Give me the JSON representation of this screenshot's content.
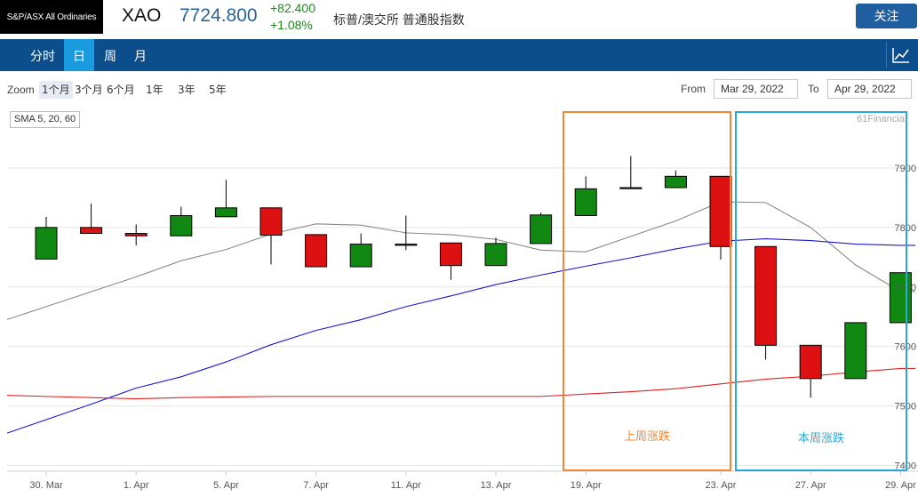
{
  "header": {
    "index_badge": "S&P/ASX All Ordinaries",
    "symbol": "XAO",
    "price": "7724.800",
    "change": "+82.400",
    "change_pct": "+1.08%",
    "index_name": "标普/澳交所 普通股指数",
    "follow_label": "关注"
  },
  "tabs": [
    {
      "label": "分时",
      "active": false
    },
    {
      "label": "日",
      "active": true
    },
    {
      "label": "周",
      "active": false
    },
    {
      "label": "月",
      "active": false
    }
  ],
  "toolbar": {
    "zoom_label": "Zoom",
    "zoom_options": [
      "1个月",
      "3个月",
      "6个月",
      "1年",
      "3年",
      "5年"
    ],
    "zoom_active": "1个月",
    "from_label": "From",
    "from_value": "Mar 29, 2022",
    "to_label": "To",
    "to_value": "Apr 29, 2022"
  },
  "chart": {
    "sma_label": "SMA 5, 20, 60",
    "credit": "61Financial",
    "last_week_label": "上周涨跌",
    "this_week_label": "本周涨跌",
    "colors": {
      "up": "#118811",
      "down": "#dd1111",
      "sma5": "#8a8a8a",
      "sma20": "#1a1acc",
      "sma60": "#dd2222",
      "last_week_box": "#f0883a",
      "this_week_box": "#2aa8d8"
    }
  },
  "chart_data": {
    "type": "candlestick",
    "ylim": [
      7400,
      7950
    ],
    "y_ticks": [
      7400,
      7500,
      7600,
      7700,
      7800,
      7900
    ],
    "x_tick_labels": [
      "30. Mar",
      "1. Apr",
      "5. Apr",
      "7. Apr",
      "11. Apr",
      "13. Apr",
      "19. Apr",
      "23. Apr",
      "27. Apr",
      "29. Apr"
    ],
    "candles": [
      {
        "o": 7747,
        "h": 7818,
        "l": 7747,
        "c": 7800
      },
      {
        "o": 7800,
        "h": 7840,
        "l": 7790,
        "c": 7790
      },
      {
        "o": 7790,
        "h": 7805,
        "l": 7770,
        "c": 7786
      },
      {
        "o": 7786,
        "h": 7835,
        "l": 7786,
        "c": 7820
      },
      {
        "o": 7818,
        "h": 7880,
        "l": 7818,
        "c": 7833
      },
      {
        "o": 7833,
        "h": 7833,
        "l": 7738,
        "c": 7787
      },
      {
        "o": 7788,
        "h": 7788,
        "l": 7734,
        "c": 7734
      },
      {
        "o": 7734,
        "h": 7790,
        "l": 7734,
        "c": 7772
      },
      {
        "o": 7772,
        "h": 7820,
        "l": 7762,
        "c": 7770
      },
      {
        "o": 7774,
        "h": 7774,
        "l": 7712,
        "c": 7736
      },
      {
        "o": 7736,
        "h": 7783,
        "l": 7736,
        "c": 7773
      },
      {
        "o": 7773,
        "h": 7825,
        "l": 7773,
        "c": 7821
      },
      {
        "o": 7820,
        "h": 7886,
        "l": 7820,
        "c": 7865
      },
      {
        "o": 7867,
        "h": 7920,
        "l": 7867,
        "c": 7867
      },
      {
        "o": 7867,
        "h": 7896,
        "l": 7867,
        "c": 7886
      },
      {
        "o": 7886,
        "h": 7886,
        "l": 7746,
        "c": 7768
      },
      {
        "o": 7768,
        "h": 7768,
        "l": 7578,
        "c": 7602
      },
      {
        "o": 7602,
        "h": 7602,
        "l": 7514,
        "c": 7546
      },
      {
        "o": 7546,
        "h": 7640,
        "l": 7546,
        "c": 7640
      },
      {
        "o": 7640,
        "h": 7724,
        "l": 7640,
        "c": 7724
      }
    ],
    "series": [
      {
        "name": "SMA 5",
        "values": [
          7667,
          7692,
          7717,
          7744,
          7763,
          7789,
          7806,
          7804,
          7791,
          7788,
          7780,
          7762,
          7759,
          7785,
          7811,
          7843,
          7842,
          7800,
          7737,
          7692
        ]
      },
      {
        "name": "SMA 20",
        "values": [
          7477,
          7503,
          7530,
          7549,
          7574,
          7603,
          7627,
          7645,
          7667,
          7685,
          7704,
          7720,
          7735,
          7749,
          7764,
          7777,
          7781,
          7778,
          7772,
          7770
        ]
      },
      {
        "name": "SMA 60",
        "values": [
          7516,
          7514,
          7512,
          7514,
          7515,
          7516,
          7516,
          7516,
          7516,
          7516,
          7516,
          7516,
          7520,
          7524,
          7529,
          7537,
          7545,
          7550,
          7557,
          7563
        ]
      }
    ]
  }
}
